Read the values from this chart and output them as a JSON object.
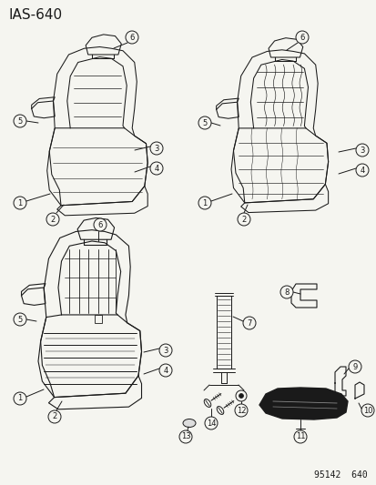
{
  "title": "IAS-640",
  "footer": "95142  640",
  "bg_color": "#f5f5f0",
  "line_color": "#1a1a1a",
  "title_fontsize": 11,
  "footer_fontsize": 7,
  "figsize": [
    4.14,
    5.33
  ],
  "dpi": 100
}
